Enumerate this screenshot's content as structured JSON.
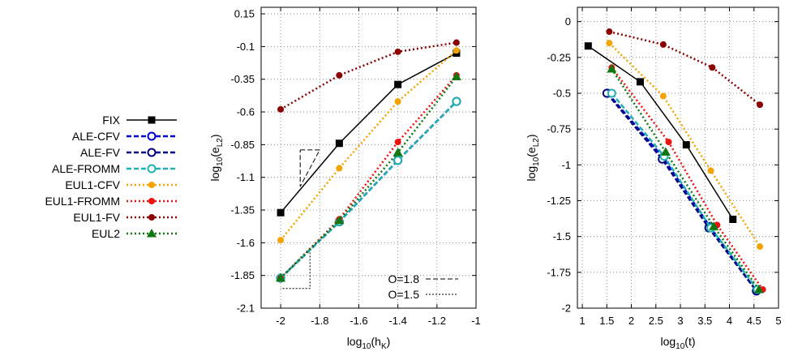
{
  "legend": {
    "placement": "left",
    "entries": [
      {
        "label": "FIX",
        "color": "#000000",
        "marker": "square",
        "dash": "solid"
      },
      {
        "label": "ALE-CFV",
        "color": "#0000cc",
        "marker": "circle-open",
        "dash": "dashed"
      },
      {
        "label": "ALE-FV",
        "color": "#000080",
        "marker": "circle-open",
        "dash": "dashed"
      },
      {
        "label": "ALE-FROMM",
        "color": "#20b2b2",
        "marker": "circle-open",
        "dash": "dashed"
      },
      {
        "label": "EUL1-CFV",
        "color": "#f5a300",
        "marker": "dot",
        "dash": "dotted"
      },
      {
        "label": "EUL1-FROMM",
        "color": "#ee1111",
        "marker": "dot",
        "dash": "dotted"
      },
      {
        "label": "EUL1-FV",
        "color": "#8b0000",
        "marker": "dot",
        "dash": "dotted"
      },
      {
        "label": "EUL2",
        "color": "#117711",
        "marker": "triangle",
        "dash": "dotted"
      }
    ]
  },
  "chart_data": [
    {
      "type": "line",
      "xlabel": "log10(hK)",
      "ylabel": "log10(eL2)",
      "xlim": [
        -2.1,
        -1.0
      ],
      "ylim": [
        -2.1,
        0.2
      ],
      "xticks": [
        "-2",
        "-1.8",
        "-1.6",
        "-1.4",
        "-1.2",
        "-1"
      ],
      "xtick_values": [
        -2,
        -1.8,
        -1.6,
        -1.4,
        -1.2,
        -1
      ],
      "yticks": [
        "0.15",
        "-0.1",
        "-0.35",
        "-0.6",
        "-0.85",
        "-1.1",
        "-1.35",
        "-1.6",
        "-1.85",
        "-2.1"
      ],
      "ytick_values": [
        0.15,
        -0.1,
        -0.35,
        -0.6,
        -0.85,
        -1.1,
        -1.35,
        -1.6,
        -1.85,
        -2.1
      ],
      "grid": true,
      "series": [
        {
          "name": "FIX",
          "x": [
            -2.0,
            -1.7,
            -1.4,
            -1.1
          ],
          "y": [
            -1.37,
            -0.84,
            -0.39,
            -0.15
          ]
        },
        {
          "name": "ALE-CFV",
          "x": [
            -2.0,
            -1.7,
            -1.4,
            -1.1
          ],
          "y": [
            -1.87,
            -1.44,
            -0.97,
            -0.52
          ]
        },
        {
          "name": "ALE-FV",
          "x": [
            -2.0,
            -1.7,
            -1.4,
            -1.1
          ],
          "y": [
            -1.87,
            -1.44,
            -0.97,
            -0.52
          ]
        },
        {
          "name": "ALE-FROMM",
          "x": [
            -2.0,
            -1.7,
            -1.4,
            -1.1
          ],
          "y": [
            -1.87,
            -1.44,
            -0.97,
            -0.52
          ]
        },
        {
          "name": "EUL1-CFV",
          "x": [
            -2.0,
            -1.7,
            -1.4,
            -1.1
          ],
          "y": [
            -1.58,
            -1.03,
            -0.52,
            -0.13
          ]
        },
        {
          "name": "EUL1-FROMM",
          "x": [
            -2.0,
            -1.7,
            -1.4,
            -1.1
          ],
          "y": [
            -1.87,
            -1.42,
            -0.83,
            -0.32
          ]
        },
        {
          "name": "EUL1-FV",
          "x": [
            -2.0,
            -1.7,
            -1.4,
            -1.1
          ],
          "y": [
            -0.58,
            -0.32,
            -0.14,
            -0.07
          ]
        },
        {
          "name": "EUL2",
          "x": [
            -2.0,
            -1.7,
            -1.4,
            -1.1
          ],
          "y": [
            -1.87,
            -1.43,
            -0.91,
            -0.33
          ]
        }
      ],
      "reference": [
        {
          "label": "O=1.8",
          "dash": "dashed",
          "x": [
            -1.9,
            -1.8,
            -1.9,
            -1.9
          ],
          "y": [
            -0.89,
            -0.89,
            -1.17,
            -0.89
          ]
        },
        {
          "label": "O=1.5",
          "dash": "dotted",
          "x": [
            -2.0,
            -1.85,
            -1.85,
            -2.0
          ],
          "y": [
            -1.87,
            -1.645,
            -1.95,
            -1.95
          ]
        }
      ]
    },
    {
      "type": "line",
      "xlabel": "log10(t)",
      "ylabel": "log10(eL2)",
      "xlim": [
        0.9,
        5.0
      ],
      "ylim": [
        -2.0,
        0.1
      ],
      "xticks": [
        "1",
        "1.5",
        "2",
        "2.5",
        "3",
        "3.5",
        "4",
        "4.5",
        "5"
      ],
      "xtick_values": [
        1,
        1.5,
        2,
        2.5,
        3,
        3.5,
        4,
        4.5,
        5
      ],
      "yticks": [
        "0",
        "-0.25",
        "-0.5",
        "-0.75",
        "-1",
        "-1.25",
        "-1.5",
        "-1.75",
        "-2"
      ],
      "ytick_values": [
        0,
        -0.25,
        -0.5,
        -0.75,
        -1,
        -1.25,
        -1.5,
        -1.75,
        -2
      ],
      "grid": true,
      "series": [
        {
          "name": "FIX",
          "x": [
            1.12,
            2.18,
            3.12,
            4.07
          ],
          "y": [
            -0.17,
            -0.42,
            -0.86,
            -1.38
          ]
        },
        {
          "name": "ALE-CFV",
          "x": [
            1.52,
            2.65,
            3.6,
            4.55
          ],
          "y": [
            -0.5,
            -0.95,
            -1.43,
            -1.88
          ]
        },
        {
          "name": "ALE-FV",
          "x": [
            1.5,
            2.63,
            3.58,
            4.55
          ],
          "y": [
            -0.5,
            -0.96,
            -1.44,
            -1.88
          ]
        },
        {
          "name": "ALE-FROMM",
          "x": [
            1.6,
            2.67,
            3.62,
            4.57
          ],
          "y": [
            -0.5,
            -0.94,
            -1.44,
            -1.87
          ]
        },
        {
          "name": "EUL1-CFV",
          "x": [
            1.55,
            2.65,
            3.62,
            4.62
          ],
          "y": [
            -0.15,
            -0.52,
            -1.04,
            -1.57
          ]
        },
        {
          "name": "EUL1-FROMM",
          "x": [
            1.6,
            2.76,
            3.75,
            4.68
          ],
          "y": [
            -0.32,
            -0.84,
            -1.42,
            -1.87
          ]
        },
        {
          "name": "EUL1-FV",
          "x": [
            1.55,
            2.65,
            3.65,
            4.62
          ],
          "y": [
            -0.07,
            -0.16,
            -0.32,
            -0.58
          ]
        },
        {
          "name": "EUL2",
          "x": [
            1.6,
            2.7,
            3.68,
            4.6
          ],
          "y": [
            -0.33,
            -0.91,
            -1.43,
            -1.87
          ]
        }
      ]
    }
  ]
}
